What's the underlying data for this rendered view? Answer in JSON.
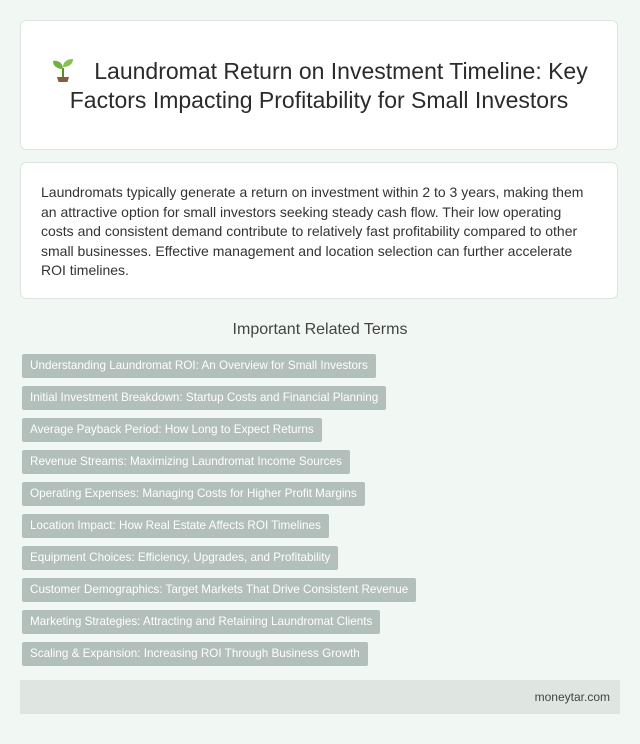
{
  "header": {
    "title": "Laundromat Return on Investment Timeline: Key Factors Impacting Profitability for Small Investors",
    "icon": "sprout-icon"
  },
  "summary": {
    "text": "Laundromats typically generate a return on investment within 2 to 3 years, making them an attractive option for small investors seeking steady cash flow. Their low operating costs and consistent demand contribute to relatively fast profitability compared to other small businesses. Effective management and location selection can further accelerate ROI timelines."
  },
  "related": {
    "heading": "Important Related Terms",
    "terms": [
      "Understanding Laundromat ROI: An Overview for Small Investors",
      "Initial Investment Breakdown: Startup Costs and Financial Planning",
      "Average Payback Period: How Long to Expect Returns",
      "Revenue Streams: Maximizing Laundromat Income Sources",
      "Operating Expenses: Managing Costs for Higher Profit Margins",
      "Location Impact: How Real Estate Affects ROI Timelines",
      "Equipment Choices: Efficiency, Upgrades, and Profitability",
      "Customer Demographics: Target Markets That Drive Consistent Revenue",
      "Marketing Strategies: Attracting and Retaining Laundromat Clients",
      "Scaling & Expansion: Increasing ROI Through Business Growth"
    ]
  },
  "footer": {
    "site": "moneytar.com"
  },
  "colors": {
    "page_background": "#f1f8f4",
    "card_background": "#ffffff",
    "term_tag": "#b2bfba",
    "footer_background": "#dfe6e2"
  }
}
